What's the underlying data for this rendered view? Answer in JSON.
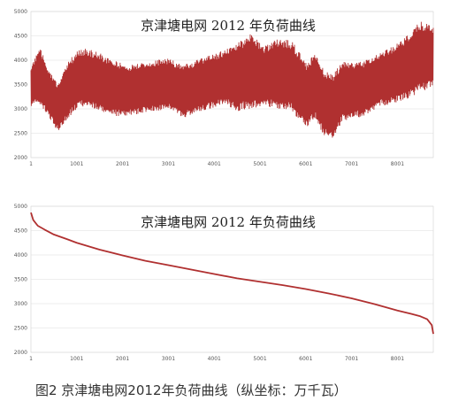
{
  "caption": "图2 京津塘电网2012年负荷曲线（纵坐标：万千瓦）",
  "line_color": "#b03030",
  "chart_data": [
    {
      "type": "area",
      "title": "京津塘电网 2012 年负荷曲线",
      "xlabel": "",
      "ylabel": "",
      "xlim": [
        1,
        8784
      ],
      "ylim": [
        2000,
        5000
      ],
      "x_ticks": [
        "1",
        "1001",
        "2001",
        "3001",
        "4001",
        "5001",
        "6001",
        "7001",
        "8001"
      ],
      "y_ticks": [
        "2000",
        "2500",
        "3000",
        "3500",
        "4000",
        "4500",
        "5000"
      ],
      "series": [
        {
          "values_note": "hourly load envelope (upper, lower) in 万千瓦, sampled every ~500 h",
          "x": [
            1,
            200,
            400,
            600,
            800,
            1000,
            1200,
            1500,
            1800,
            2100,
            2400,
            2700,
            3000,
            3300,
            3600,
            3900,
            4200,
            4500,
            4800,
            5100,
            5400,
            5700,
            6000,
            6200,
            6400,
            6600,
            6800,
            7000,
            7300,
            7600,
            7900,
            8200,
            8500,
            8784
          ],
          "upper": [
            3900,
            4250,
            3800,
            3500,
            3950,
            4200,
            4250,
            4150,
            4000,
            3900,
            3950,
            4000,
            4050,
            3900,
            4000,
            4100,
            4200,
            4350,
            4550,
            4300,
            4450,
            4400,
            3950,
            4150,
            3800,
            3700,
            4000,
            3950,
            4000,
            4150,
            4300,
            4500,
            4800,
            4700
          ],
          "lower": [
            3050,
            3100,
            2800,
            2520,
            2800,
            3000,
            3050,
            2950,
            2850,
            2850,
            2900,
            2950,
            3000,
            2800,
            2900,
            3000,
            3100,
            2950,
            3000,
            3050,
            3000,
            2950,
            2600,
            2800,
            2450,
            2400,
            2750,
            2800,
            2850,
            3050,
            3100,
            3200,
            3350,
            3450
          ]
        }
      ]
    },
    {
      "type": "line",
      "title": "京津塘电网 2012 年负荷曲线",
      "xlabel": "",
      "ylabel": "",
      "xlim": [
        1,
        8784
      ],
      "ylim": [
        2000,
        5000
      ],
      "x_ticks": [
        "1",
        "1001",
        "2001",
        "3001",
        "4001",
        "5001",
        "6001",
        "7001",
        "8001"
      ],
      "y_ticks": [
        "2000",
        "2500",
        "3000",
        "3500",
        "4000",
        "4500",
        "5000"
      ],
      "series": [
        {
          "x": [
            1,
            50,
            150,
            300,
            500,
            800,
            1000,
            1500,
            2000,
            2500,
            3000,
            3500,
            4000,
            4500,
            5000,
            5500,
            6000,
            6500,
            7000,
            7500,
            8000,
            8300,
            8500,
            8650,
            8750,
            8784
          ],
          "values": [
            4870,
            4720,
            4600,
            4520,
            4420,
            4320,
            4250,
            4110,
            3990,
            3880,
            3790,
            3700,
            3610,
            3520,
            3450,
            3380,
            3300,
            3210,
            3110,
            2990,
            2860,
            2790,
            2740,
            2680,
            2560,
            2380
          ]
        }
      ]
    }
  ]
}
